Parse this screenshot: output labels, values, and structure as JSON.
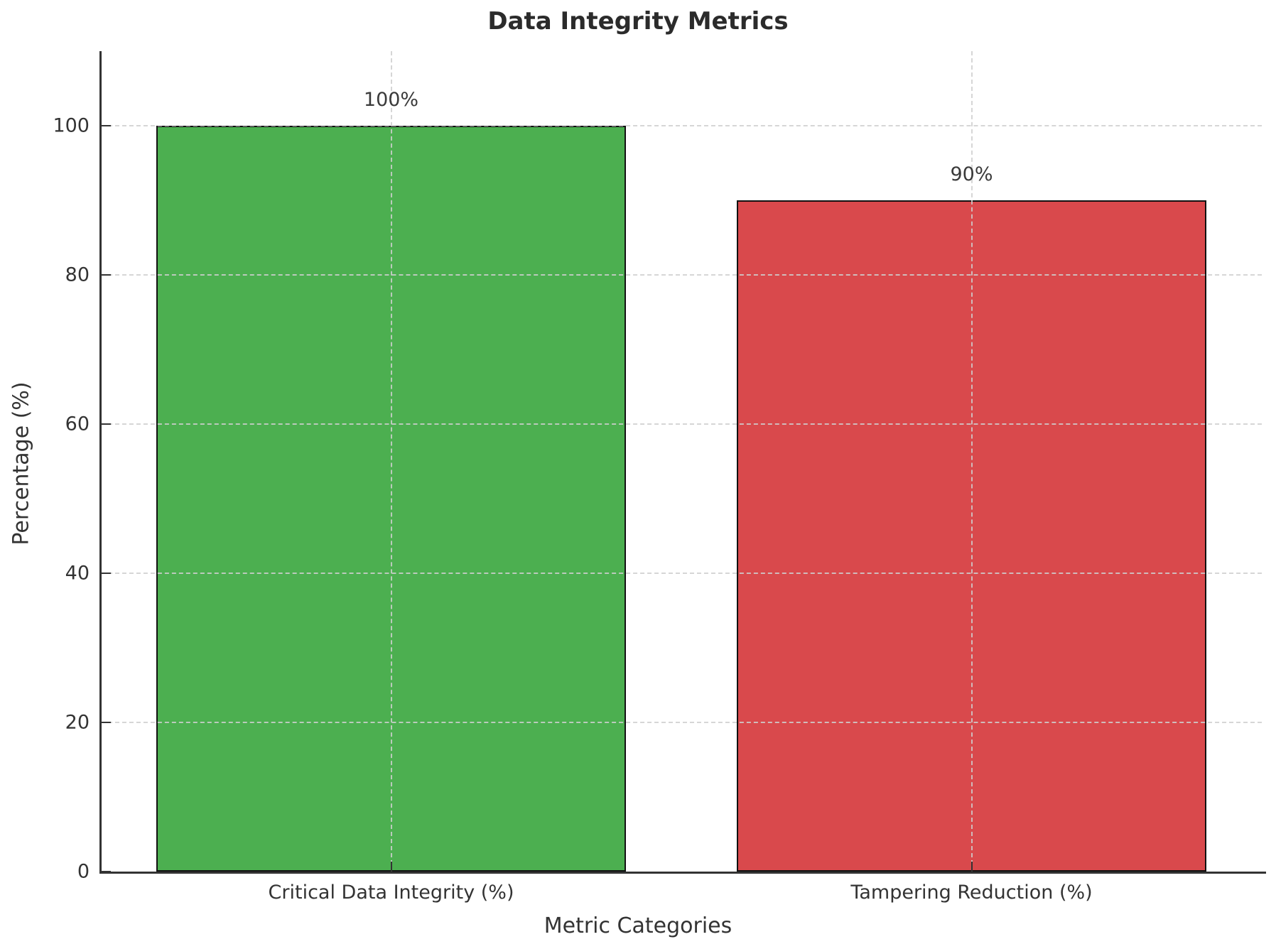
{
  "chart_data": {
    "type": "bar",
    "title": "Data Integrity Metrics",
    "xlabel": "Metric Categories",
    "ylabel": "Percentage (%)",
    "categories": [
      "Critical Data Integrity (%)",
      "Tampering Reduction (%)"
    ],
    "values": [
      100,
      90
    ],
    "bar_value_labels": [
      "100%",
      "90%"
    ],
    "bar_colors": [
      "#4caf50",
      "#d9494c"
    ],
    "bar_edge_color": "#111111",
    "yticks": [
      0,
      20,
      40,
      60,
      80,
      100
    ],
    "ytick_labels": [
      "0",
      "20",
      "40",
      "60",
      "80",
      "100"
    ],
    "ylim": [
      0,
      110
    ],
    "grid": true,
    "grid_style": "dashed",
    "gridline_color": "#cfcfcf",
    "axis_color": "#333333",
    "text_color": "#333333",
    "title_color": "#2b2b2b",
    "background": "#ffffff",
    "legend": "none"
  }
}
